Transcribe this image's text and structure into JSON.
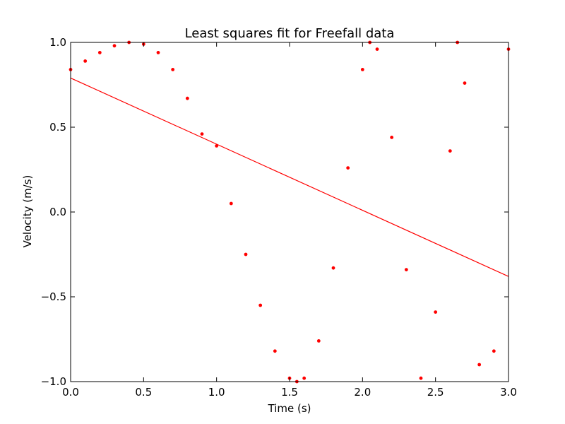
{
  "chart_data": {
    "type": "scatter",
    "title": "Least squares fit for Freefall data",
    "xlabel": "Time (s)",
    "ylabel": "Velocity (m/s)",
    "xlim": [
      0.0,
      3.0
    ],
    "ylim": [
      -1.0,
      1.0
    ],
    "xticks": [
      0.0,
      0.5,
      1.0,
      1.5,
      2.0,
      2.5,
      3.0
    ],
    "xtick_labels": [
      "0.0",
      "0.5",
      "1.0",
      "1.5",
      "2.0",
      "2.5",
      "3.0"
    ],
    "yticks": [
      -1.0,
      -0.5,
      0.0,
      0.5,
      1.0
    ],
    "ytick_labels": [
      "−1.0",
      "−0.5",
      "0.0",
      "0.5",
      "1.0"
    ],
    "grid": false,
    "colors": {
      "data": "#ff0000",
      "fit": "#ff0000"
    },
    "series": [
      {
        "kind": "points",
        "x": [
          0.0,
          0.1,
          0.2,
          0.3,
          0.4,
          0.5,
          0.6,
          0.7,
          0.8,
          0.9,
          1.0,
          1.1,
          1.2,
          1.3,
          1.4,
          1.5,
          1.55,
          1.6,
          1.7,
          1.8,
          1.9,
          2.0,
          2.05,
          2.1,
          2.2,
          2.3,
          2.4,
          2.5,
          2.6,
          2.65,
          2.7,
          2.8,
          2.9,
          3.0
        ],
        "y": [
          0.84,
          0.89,
          0.94,
          0.98,
          1.0,
          0.99,
          0.94,
          0.84,
          0.67,
          0.46,
          0.39,
          0.05,
          -0.25,
          -0.55,
          -0.82,
          -0.98,
          -1.0,
          -0.98,
          -0.76,
          -0.33,
          0.26,
          0.84,
          1.0,
          0.96,
          0.44,
          -0.34,
          -0.98,
          -0.59,
          0.36,
          1.0,
          0.76,
          -0.9,
          -0.82,
          0.96
        ]
      },
      {
        "kind": "fit-line",
        "x": [
          0.0,
          3.0
        ],
        "y": [
          0.79,
          -0.38
        ]
      }
    ]
  }
}
